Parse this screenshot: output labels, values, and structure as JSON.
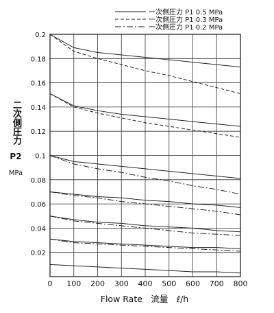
{
  "chart_data": {
    "type": "line",
    "xlabel": "Flow Rate　流量　ℓ/h",
    "ylabel_jp": "二次側圧力",
    "ylabel_symbol": "P2",
    "ylabel_unit": "MPa",
    "xlim": [
      0,
      800
    ],
    "ylim": [
      0,
      0.2
    ],
    "x_ticks": [
      0,
      100,
      200,
      300,
      400,
      500,
      600,
      700,
      800
    ],
    "y_ticks": [
      "0.02",
      "0.04",
      "0.06",
      "0.08",
      "0.1",
      "0.12",
      "0.14",
      "0.16",
      "0.18",
      "0.2"
    ],
    "grid": true,
    "legend_position": "top-right",
    "legend": [
      {
        "label": "一次側圧力 P1 0.5 MPa",
        "style": "solid"
      },
      {
        "label": "一次側圧力 P1 0.3 MPa",
        "style": "dashed"
      },
      {
        "label": "一次側圧力 P1 0.2 MPa",
        "style": "dashdot"
      }
    ],
    "x": [
      0,
      100,
      200,
      300,
      400,
      500,
      600,
      700,
      800
    ],
    "series": [
      {
        "set": 0.2,
        "style": "solid",
        "values": [
          0.2,
          0.189,
          0.185,
          0.183,
          0.181,
          0.179,
          0.177,
          0.175,
          0.173
        ]
      },
      {
        "set": 0.2,
        "style": "dashed",
        "values": [
          0.2,
          0.186,
          0.18,
          0.175,
          0.17,
          0.166,
          0.161,
          0.156,
          0.151
        ]
      },
      {
        "set": 0.15,
        "style": "solid",
        "values": [
          0.151,
          0.141,
          0.137,
          0.134,
          0.132,
          0.13,
          0.128,
          0.126,
          0.124
        ]
      },
      {
        "set": 0.15,
        "style": "dashed",
        "values": [
          0.151,
          0.14,
          0.135,
          0.131,
          0.127,
          0.124,
          0.121,
          0.118,
          0.115
        ]
      },
      {
        "set": 0.1,
        "style": "solid",
        "values": [
          0.1,
          0.095,
          0.093,
          0.091,
          0.089,
          0.087,
          0.085,
          0.083,
          0.081
        ]
      },
      {
        "set": 0.1,
        "style": "dashdot",
        "values": [
          0.1,
          0.093,
          0.089,
          0.086,
          0.082,
          0.079,
          0.075,
          0.072,
          0.068
        ]
      },
      {
        "set": 0.07,
        "style": "solid",
        "values": [
          0.07,
          0.068,
          0.066,
          0.065,
          0.063,
          0.062,
          0.06,
          0.059,
          0.057
        ]
      },
      {
        "set": 0.07,
        "style": "dashdot",
        "values": [
          0.07,
          0.067,
          0.065,
          0.062,
          0.06,
          0.058,
          0.056,
          0.054,
          0.051
        ]
      },
      {
        "set": 0.05,
        "style": "solid",
        "values": [
          0.05,
          0.047,
          0.045,
          0.044,
          0.042,
          0.041,
          0.04,
          0.038,
          0.037
        ]
      },
      {
        "set": 0.05,
        "style": "dashdot",
        "values": [
          0.05,
          0.046,
          0.044,
          0.042,
          0.04,
          0.038,
          0.036,
          0.035,
          0.034
        ]
      },
      {
        "set": 0.03,
        "style": "solid",
        "values": [
          0.031,
          0.029,
          0.028,
          0.027,
          0.026,
          0.025,
          0.024,
          0.024,
          0.023
        ]
      },
      {
        "set": 0.03,
        "style": "dashdot",
        "values": [
          0.031,
          0.028,
          0.027,
          0.026,
          0.025,
          0.024,
          0.023,
          0.022,
          0.021
        ]
      },
      {
        "set": 0.01,
        "style": "solid",
        "values": [
          0.01,
          0.009,
          0.008,
          0.007,
          0.006,
          0.005,
          0.004,
          0.004,
          0.003
        ]
      }
    ]
  },
  "colors": {
    "line": "#222222",
    "grid": "#333333",
    "background": "#ffffff"
  }
}
